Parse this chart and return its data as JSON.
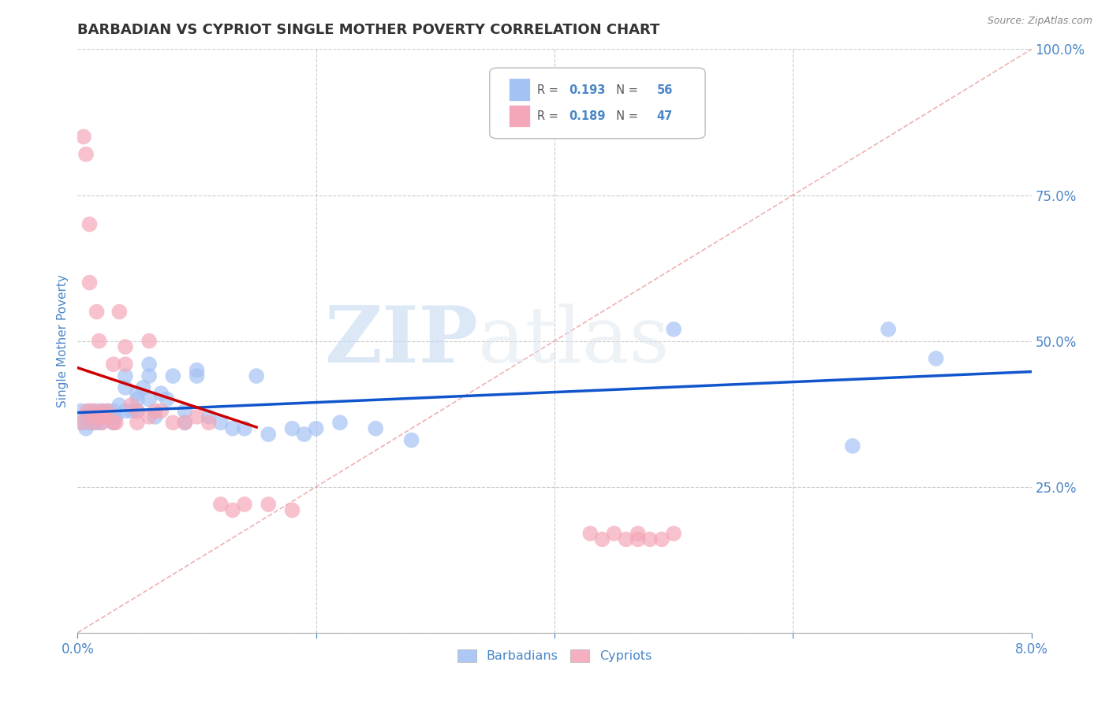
{
  "title": "BARBADIAN VS CYPRIOT SINGLE MOTHER POVERTY CORRELATION CHART",
  "source": "Source: ZipAtlas.com",
  "xlabel_barbadians": "Barbadians",
  "xlabel_cypriots": "Cypriots",
  "ylabel": "Single Mother Poverty",
  "xlim": [
    0.0,
    0.08
  ],
  "ylim": [
    0.0,
    1.0
  ],
  "xtick_positions": [
    0.0,
    0.02,
    0.04,
    0.06,
    0.08
  ],
  "xtick_labels": [
    "0.0%",
    "",
    "",
    "",
    "8.0%"
  ],
  "ytick_positions": [
    0.0,
    0.25,
    0.5,
    0.75,
    1.0
  ],
  "ytick_labels_right": [
    "",
    "25.0%",
    "50.0%",
    "75.0%",
    "100.0%"
  ],
  "barbadian_color": "#a4c2f4",
  "cypriot_color": "#f4a7b9",
  "barbadian_line_color": "#1155cc",
  "cypriot_line_color": "#cc0000",
  "diagonal_color": "#e06666",
  "r_barbadian": 0.193,
  "n_barbadian": 56,
  "r_cypriot": 0.189,
  "n_cypriot": 47,
  "barbadian_points_x": [
    0.0003,
    0.0005,
    0.0007,
    0.0008,
    0.001,
    0.001,
    0.0012,
    0.0013,
    0.0014,
    0.0015,
    0.0016,
    0.0018,
    0.002,
    0.002,
    0.0022,
    0.0025,
    0.003,
    0.003,
    0.003,
    0.0032,
    0.0035,
    0.004,
    0.004,
    0.004,
    0.0045,
    0.005,
    0.005,
    0.005,
    0.0055,
    0.006,
    0.006,
    0.006,
    0.0065,
    0.007,
    0.0075,
    0.008,
    0.009,
    0.009,
    0.01,
    0.01,
    0.011,
    0.012,
    0.013,
    0.014,
    0.015,
    0.016,
    0.018,
    0.019,
    0.02,
    0.022,
    0.025,
    0.028,
    0.05,
    0.065,
    0.068,
    0.072
  ],
  "barbadian_points_y": [
    0.38,
    0.36,
    0.35,
    0.37,
    0.36,
    0.38,
    0.37,
    0.36,
    0.37,
    0.38,
    0.36,
    0.37,
    0.38,
    0.36,
    0.37,
    0.38,
    0.37,
    0.36,
    0.38,
    0.37,
    0.39,
    0.42,
    0.38,
    0.44,
    0.38,
    0.4,
    0.41,
    0.38,
    0.42,
    0.4,
    0.44,
    0.46,
    0.37,
    0.41,
    0.4,
    0.44,
    0.36,
    0.38,
    0.44,
    0.45,
    0.37,
    0.36,
    0.35,
    0.35,
    0.44,
    0.34,
    0.35,
    0.34,
    0.35,
    0.36,
    0.35,
    0.33,
    0.52,
    0.32,
    0.52,
    0.47
  ],
  "cypriot_points_x": [
    0.0003,
    0.0005,
    0.0007,
    0.0008,
    0.001,
    0.001,
    0.0012,
    0.0013,
    0.0015,
    0.0016,
    0.0018,
    0.002,
    0.002,
    0.002,
    0.0022,
    0.0025,
    0.003,
    0.003,
    0.0032,
    0.0035,
    0.004,
    0.004,
    0.0045,
    0.005,
    0.005,
    0.006,
    0.006,
    0.0065,
    0.007,
    0.008,
    0.009,
    0.01,
    0.011,
    0.012,
    0.013,
    0.014,
    0.016,
    0.018,
    0.043,
    0.044,
    0.045,
    0.046,
    0.047,
    0.047,
    0.048,
    0.049,
    0.05
  ],
  "cypriot_points_y": [
    0.36,
    0.85,
    0.82,
    0.38,
    0.7,
    0.6,
    0.36,
    0.38,
    0.37,
    0.55,
    0.5,
    0.37,
    0.36,
    0.38,
    0.37,
    0.38,
    0.36,
    0.46,
    0.36,
    0.55,
    0.46,
    0.49,
    0.39,
    0.38,
    0.36,
    0.37,
    0.5,
    0.38,
    0.38,
    0.36,
    0.36,
    0.37,
    0.36,
    0.22,
    0.21,
    0.22,
    0.22,
    0.21,
    0.17,
    0.16,
    0.17,
    0.16,
    0.16,
    0.17,
    0.16,
    0.16,
    0.17
  ],
  "watermark_zip": "ZIP",
  "watermark_atlas": "atlas",
  "background_color": "#ffffff",
  "grid_color": "#cccccc",
  "title_color": "#333333",
  "label_color": "#4a86c8",
  "tick_color": "#4a86c8"
}
